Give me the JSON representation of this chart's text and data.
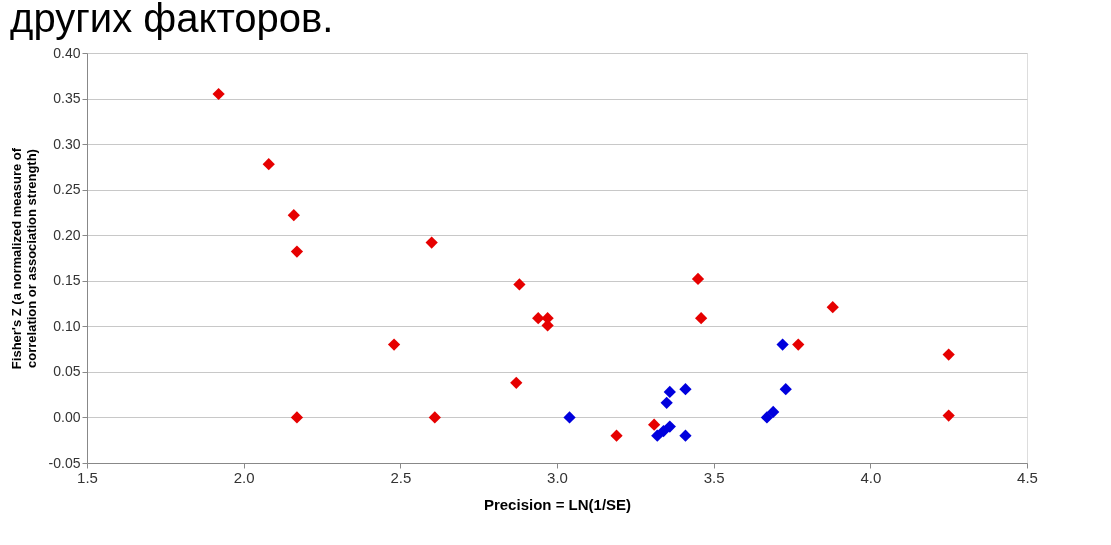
{
  "chart_data": {
    "type": "scatter",
    "title": "других факторов.",
    "xlabel": "Precision = LN(1/SE)",
    "ylabel": "Fisher's Z (a normalized measure of\ncorrelation or association strength)",
    "marker": "diamond",
    "grid": "y",
    "legend": false,
    "xlim": [
      1.5,
      4.5
    ],
    "ylim": [
      -0.05,
      0.4
    ],
    "xticks": [
      1.5,
      {
        "value": 2,
        "label": "2.0"
      },
      2.5,
      {
        "value": 3,
        "label": "3.0"
      },
      3.5,
      {
        "value": 4,
        "label": "4.0"
      },
      4.5
    ],
    "yticks": [
      {
        "value": -0.05,
        "label": "-0.05"
      },
      {
        "value": 0,
        "label": "0.00"
      },
      {
        "value": 0.05,
        "label": "0.05"
      },
      {
        "value": 0.1,
        "label": "0.10"
      },
      {
        "value": 0.15,
        "label": "0.15"
      },
      {
        "value": 0.2,
        "label": "0.20"
      },
      {
        "value": 0.25,
        "label": "0.25"
      },
      {
        "value": 0.3,
        "label": "0.30"
      },
      {
        "value": 0.35,
        "label": "0.35"
      },
      {
        "value": 0.4,
        "label": "0.40"
      }
    ],
    "series": [
      {
        "color": "#e60000",
        "x": [
          1.92,
          2.08,
          2.16,
          2.17,
          2.17,
          2.48,
          2.6,
          2.61,
          2.87,
          2.88,
          2.94,
          2.97,
          2.97,
          3.19,
          3.31,
          3.45,
          3.46,
          3.77,
          3.88,
          4.25,
          4.25
        ],
        "values": [
          0.355,
          0.278,
          0.222,
          0.182,
          0.0,
          0.08,
          0.192,
          0.0,
          0.038,
          0.146,
          0.109,
          0.109,
          0.101,
          -0.02,
          -0.008,
          0.152,
          0.109,
          0.08,
          0.121,
          0.069,
          0.002
        ]
      },
      {
        "color": "#0000dd",
        "x": [
          3.04,
          3.32,
          3.34,
          3.35,
          3.36,
          3.36,
          3.41,
          3.41,
          3.67,
          3.69,
          3.72,
          3.73
        ],
        "values": [
          0.0,
          -0.02,
          -0.015,
          0.016,
          -0.01,
          0.028,
          0.031,
          -0.02,
          0.0,
          0.006,
          0.08,
          0.031
        ]
      }
    ]
  }
}
